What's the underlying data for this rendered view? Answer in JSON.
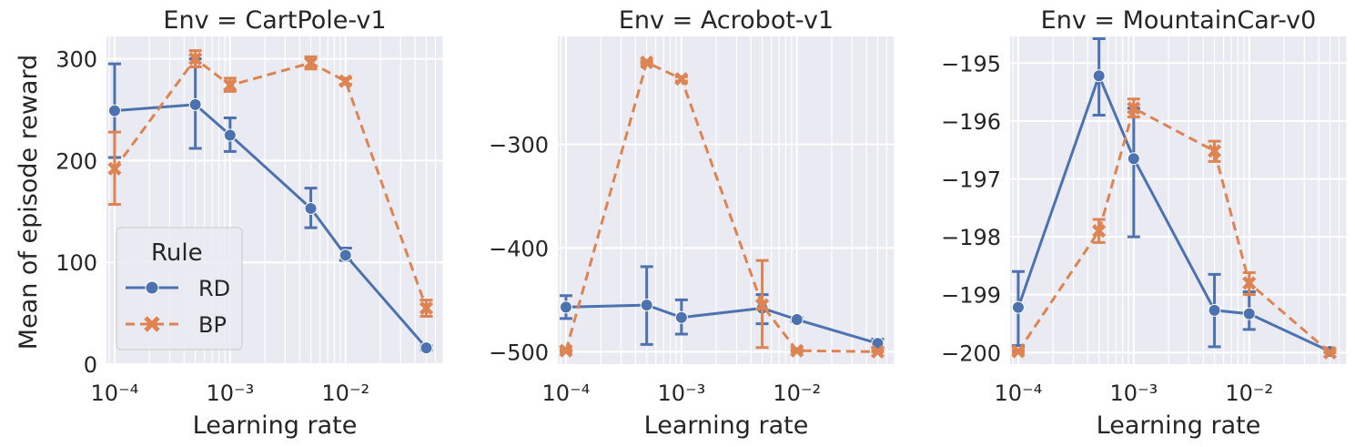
{
  "figure": {
    "ylabel": "Mean of episode reward",
    "xlabel": "Learning rate",
    "legend": {
      "title": "Rule",
      "entries": [
        {
          "name": "RD",
          "color": "#4c72b0",
          "marker": "circle",
          "dash": "solid"
        },
        {
          "name": "BP",
          "color": "#dd8452",
          "marker": "x",
          "dash": "dashed"
        }
      ],
      "placement": "lower-left of first panel"
    },
    "background": "#eaeaf2",
    "grid": true,
    "xscale": "log"
  },
  "chart_data": [
    {
      "type": "line",
      "title": "Env = CartPole-v1",
      "xlabel": "Learning rate",
      "ylabel": "Mean of episode reward",
      "xscale": "log",
      "xlim": [
        8.5e-05,
        0.07
      ],
      "ylim": [
        0,
        322
      ],
      "yticks": [
        0,
        100,
        200,
        300
      ],
      "ytick_labels": [
        "0",
        "100",
        "200",
        "300"
      ],
      "xticks": [
        0.0001,
        0.001,
        0.01
      ],
      "xtick_labels": [
        "10⁻⁴",
        "10⁻³",
        "10⁻²"
      ],
      "x": [
        0.0001,
        0.0005,
        0.001,
        0.005,
        0.01,
        0.05
      ],
      "series": [
        {
          "name": "RD",
          "values": [
            249,
            255,
            225,
            153,
            107,
            16
          ],
          "err_low": [
            203,
            212,
            209,
            134,
            102,
            14
          ],
          "err_high": [
            295,
            300,
            242,
            173,
            114,
            18
          ]
        },
        {
          "name": "BP",
          "values": [
            192,
            300,
            274,
            296,
            278,
            55
          ],
          "err_low": [
            157,
            292,
            268,
            290,
            275,
            47
          ],
          "err_high": [
            228,
            308,
            281,
            302,
            281,
            63
          ]
        }
      ]
    },
    {
      "type": "line",
      "title": "Env = Acrobot-v1",
      "xlabel": "Learning rate",
      "ylabel": "",
      "xscale": "log",
      "xlim": [
        8.5e-05,
        0.07
      ],
      "ylim": [
        -512,
        -196
      ],
      "yticks": [
        -500,
        -400,
        -300
      ],
      "ytick_labels": [
        "−500",
        "−400",
        "−300"
      ],
      "xticks": [
        0.0001,
        0.001,
        0.01
      ],
      "xtick_labels": [
        "10⁻⁴",
        "10⁻³",
        "10⁻²"
      ],
      "x": [
        0.0001,
        0.0005,
        0.001,
        0.005,
        0.01,
        0.05
      ],
      "series": [
        {
          "name": "RD",
          "values": [
            -457,
            -455,
            -467,
            -458,
            -469,
            -492
          ],
          "err_low": [
            -468,
            -493,
            -483,
            -473,
            -471,
            -496
          ],
          "err_high": [
            -446,
            -418,
            -450,
            -445,
            -467,
            -488
          ]
        },
        {
          "name": "BP",
          "values": [
            -499,
            -221,
            -237,
            -455,
            -499,
            -500
          ],
          "err_low": [
            -500,
            -222,
            -239,
            -496,
            -500,
            -500
          ],
          "err_high": [
            -498,
            -220,
            -235,
            -412,
            -498,
            -499
          ]
        }
      ]
    },
    {
      "type": "line",
      "title": "Env = MountainCar-v0",
      "xlabel": "Learning rate",
      "ylabel": "",
      "xscale": "log",
      "xlim": [
        8.5e-05,
        0.07
      ],
      "ylim": [
        -200.2,
        -194.54
      ],
      "yticks": [
        -200,
        -199,
        -198,
        -197,
        -196,
        -195
      ],
      "ytick_labels": [
        "−200",
        "−199",
        "−198",
        "−197",
        "−196",
        "−195"
      ],
      "xticks": [
        0.0001,
        0.001,
        0.01
      ],
      "xtick_labels": [
        "10⁻⁴",
        "10⁻³",
        "10⁻²"
      ],
      "x": [
        0.0001,
        0.0005,
        0.001,
        0.005,
        0.01,
        0.05
      ],
      "series": [
        {
          "name": "RD",
          "values": [
            -199.22,
            -195.22,
            -196.65,
            -199.27,
            -199.33,
            -199.98
          ],
          "err_low": [
            -199.88,
            -195.9,
            -198.0,
            -199.9,
            -199.6,
            -200.0
          ],
          "err_high": [
            -198.6,
            -194.58,
            -195.78,
            -198.65,
            -198.95,
            -199.95
          ]
        },
        {
          "name": "BP",
          "values": [
            -199.98,
            -197.9,
            -195.78,
            -196.52,
            -198.8,
            -200.0
          ],
          "err_low": [
            -200.0,
            -198.1,
            -195.93,
            -196.7,
            -199.0,
            -200.0
          ],
          "err_high": [
            -199.96,
            -197.7,
            -195.62,
            -196.35,
            -198.62,
            -199.98
          ]
        }
      ]
    }
  ]
}
